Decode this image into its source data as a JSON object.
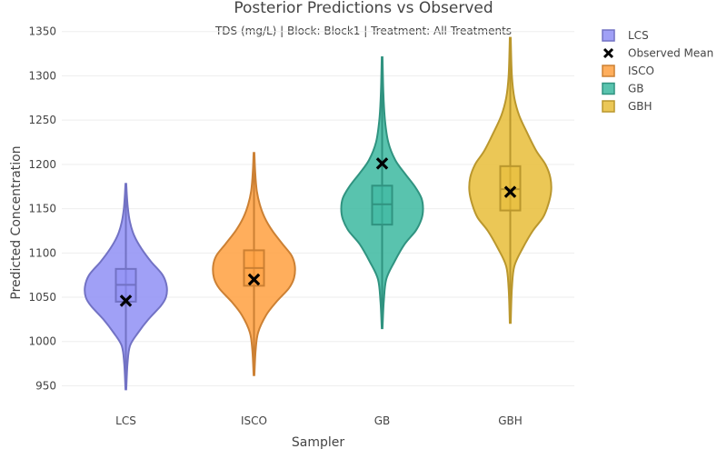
{
  "chart_data": {
    "type": "violin",
    "title": "Posterior Predictions vs Observed",
    "subtitle": "TDS (mg/L) | Block: Block1 | Treatment: All Treatments",
    "xlabel": "Sampler",
    "ylabel": "Predicted Concentration",
    "ylim": [
      932,
      1360
    ],
    "yticks": [
      950,
      1000,
      1050,
      1100,
      1150,
      1200,
      1250,
      1300,
      1350
    ],
    "grid": true,
    "legend_position": "top-right",
    "categories": [
      "LCS",
      "ISCO",
      "GB",
      "GBH"
    ],
    "series": [
      {
        "name": "LCS",
        "color": "#8f8ff5",
        "min": 946,
        "q1": 1045,
        "median": 1064,
        "q3": 1082,
        "max": 1178,
        "observed_mean": 1046,
        "density": [
          [
            946,
            0.01
          ],
          [
            975,
            0.04
          ],
          [
            995,
            0.1
          ],
          [
            1010,
            0.3
          ],
          [
            1025,
            0.55
          ],
          [
            1040,
            0.85
          ],
          [
            1050,
            0.98
          ],
          [
            1062,
            1.0
          ],
          [
            1075,
            0.9
          ],
          [
            1090,
            0.62
          ],
          [
            1105,
            0.38
          ],
          [
            1120,
            0.2
          ],
          [
            1135,
            0.1
          ],
          [
            1150,
            0.05
          ],
          [
            1165,
            0.025
          ],
          [
            1178,
            0.01
          ]
        ]
      },
      {
        "name": "ISCO",
        "color": "#ffa040",
        "min": 962,
        "q1": 1063,
        "median": 1083,
        "q3": 1103,
        "max": 1213,
        "observed_mean": 1070,
        "density": [
          [
            962,
            0.01
          ],
          [
            990,
            0.04
          ],
          [
            1010,
            0.1
          ],
          [
            1030,
            0.3
          ],
          [
            1045,
            0.55
          ],
          [
            1060,
            0.85
          ],
          [
            1072,
            0.98
          ],
          [
            1085,
            1.0
          ],
          [
            1097,
            0.92
          ],
          [
            1110,
            0.7
          ],
          [
            1125,
            0.45
          ],
          [
            1140,
            0.26
          ],
          [
            1155,
            0.14
          ],
          [
            1170,
            0.07
          ],
          [
            1190,
            0.03
          ],
          [
            1213,
            0.01
          ]
        ]
      },
      {
        "name": "GB",
        "color": "#3cb8a0",
        "min": 1015,
        "q1": 1132,
        "median": 1155,
        "q3": 1176,
        "max": 1321,
        "observed_mean": 1201,
        "density": [
          [
            1015,
            0.01
          ],
          [
            1045,
            0.04
          ],
          [
            1070,
            0.1
          ],
          [
            1090,
            0.3
          ],
          [
            1110,
            0.55
          ],
          [
            1125,
            0.82
          ],
          [
            1138,
            0.96
          ],
          [
            1150,
            1.0
          ],
          [
            1162,
            0.96
          ],
          [
            1175,
            0.8
          ],
          [
            1190,
            0.55
          ],
          [
            1205,
            0.32
          ],
          [
            1225,
            0.15
          ],
          [
            1250,
            0.07
          ],
          [
            1280,
            0.03
          ],
          [
            1321,
            0.01
          ]
        ]
      },
      {
        "name": "GBH",
        "color": "#e8bd38",
        "min": 1021,
        "q1": 1148,
        "median": 1172,
        "q3": 1198,
        "max": 1343,
        "observed_mean": 1169,
        "density": [
          [
            1021,
            0.01
          ],
          [
            1060,
            0.04
          ],
          [
            1085,
            0.1
          ],
          [
            1105,
            0.3
          ],
          [
            1125,
            0.55
          ],
          [
            1140,
            0.8
          ],
          [
            1155,
            0.93
          ],
          [
            1170,
            1.0
          ],
          [
            1185,
            0.98
          ],
          [
            1200,
            0.86
          ],
          [
            1215,
            0.64
          ],
          [
            1235,
            0.42
          ],
          [
            1255,
            0.22
          ],
          [
            1275,
            0.1
          ],
          [
            1300,
            0.04
          ],
          [
            1343,
            0.01
          ]
        ]
      }
    ],
    "legend": [
      {
        "label": "LCS",
        "color": "#8f8ff5",
        "symbol": "square"
      },
      {
        "label": "Observed Mean",
        "color": "#000000",
        "symbol": "x"
      },
      {
        "label": "ISCO",
        "color": "#ffa040",
        "symbol": "square"
      },
      {
        "label": "GB",
        "color": "#3cb8a0",
        "symbol": "square"
      },
      {
        "label": "GBH",
        "color": "#e8bd38",
        "symbol": "square"
      }
    ]
  }
}
